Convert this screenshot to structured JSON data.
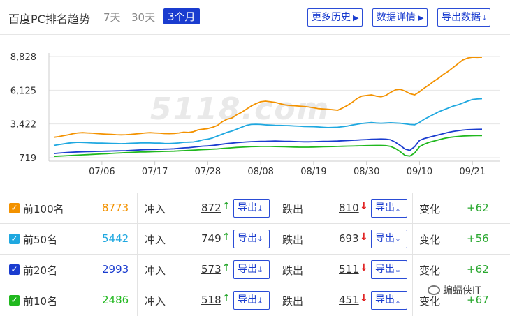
{
  "header": {
    "title": "百度PC排名趋势",
    "ranges": [
      "7天",
      "30天",
      "3个月"
    ],
    "active_range": "3个月",
    "buttons": {
      "history": "更多历史",
      "details": "数据详情",
      "export": "导出数据"
    },
    "icons": {
      "history": "chevron-right-icon",
      "details": "chevron-right-icon",
      "export": "download-icon"
    }
  },
  "watermark": "5118.com",
  "chart_data": {
    "type": "line",
    "x_ticks": [
      "07/06",
      "07/17",
      "07/28",
      "08/08",
      "08/19",
      "08/30",
      "09/10",
      "09/21"
    ],
    "y_ticks": [
      719,
      3422,
      6125,
      8828
    ],
    "ylim": [
      719,
      8828
    ],
    "x_count": 90,
    "grid": true,
    "series": [
      {
        "name": "前100名",
        "color": "#f39200",
        "values": [
          2350,
          2400,
          2480,
          2550,
          2640,
          2700,
          2720,
          2700,
          2680,
          2650,
          2620,
          2600,
          2580,
          2560,
          2550,
          2560,
          2580,
          2620,
          2660,
          2700,
          2720,
          2700,
          2680,
          2650,
          2640,
          2660,
          2700,
          2760,
          2740,
          2800,
          2950,
          3000,
          3050,
          3150,
          3300,
          3600,
          3800,
          3900,
          4150,
          4350,
          4600,
          4850,
          5050,
          5200,
          5250,
          5200,
          5150,
          5050,
          4950,
          4900,
          4880,
          4850,
          4820,
          4780,
          4720,
          4650,
          4620,
          4600,
          4560,
          4520,
          4700,
          4900,
          5150,
          5450,
          5650,
          5700,
          5750,
          5650,
          5600,
          5700,
          5950,
          6150,
          6200,
          6050,
          5850,
          5750,
          6000,
          6300,
          6550,
          6850,
          7100,
          7400,
          7650,
          7950,
          8250,
          8550,
          8700,
          8773,
          8760,
          8773
        ]
      },
      {
        "name": "前50名",
        "color": "#1fa8e0",
        "values": [
          1700,
          1760,
          1820,
          1880,
          1920,
          1950,
          1940,
          1920,
          1900,
          1890,
          1880,
          1870,
          1860,
          1850,
          1840,
          1850,
          1870,
          1880,
          1900,
          1910,
          1900,
          1890,
          1880,
          1860,
          1850,
          1870,
          1900,
          1950,
          1960,
          1980,
          2050,
          2150,
          2200,
          2300,
          2450,
          2600,
          2750,
          2850,
          3000,
          3150,
          3300,
          3380,
          3400,
          3380,
          3350,
          3330,
          3310,
          3300,
          3290,
          3280,
          3260,
          3240,
          3220,
          3210,
          3200,
          3180,
          3150,
          3130,
          3140,
          3160,
          3200,
          3250,
          3330,
          3400,
          3460,
          3500,
          3530,
          3500,
          3480,
          3500,
          3520,
          3500,
          3480,
          3430,
          3380,
          3360,
          3550,
          3800,
          4000,
          4200,
          4400,
          4550,
          4700,
          4850,
          4950,
          5100,
          5250,
          5380,
          5420,
          5442
        ]
      },
      {
        "name": "前20名",
        "color": "#1a3ccf",
        "values": [
          1050,
          1080,
          1110,
          1140,
          1160,
          1180,
          1190,
          1200,
          1210,
          1220,
          1230,
          1240,
          1250,
          1260,
          1270,
          1280,
          1300,
          1320,
          1340,
          1360,
          1370,
          1380,
          1390,
          1400,
          1410,
          1430,
          1460,
          1500,
          1520,
          1560,
          1600,
          1640,
          1660,
          1700,
          1740,
          1800,
          1850,
          1880,
          1920,
          1950,
          1980,
          2000,
          2010,
          2020,
          2030,
          2040,
          2050,
          2040,
          2030,
          2020,
          2010,
          2000,
          1990,
          1990,
          2000,
          2010,
          2020,
          2030,
          2040,
          2050,
          2070,
          2090,
          2110,
          2130,
          2150,
          2170,
          2190,
          2200,
          2210,
          2200,
          2150,
          1950,
          1700,
          1400,
          1300,
          1600,
          2100,
          2250,
          2350,
          2450,
          2550,
          2650,
          2750,
          2820,
          2880,
          2930,
          2960,
          2980,
          2990,
          2993
        ]
      },
      {
        "name": "前10名",
        "color": "#20b81e",
        "values": [
          820,
          840,
          860,
          880,
          900,
          920,
          940,
          960,
          980,
          1000,
          1020,
          1040,
          1060,
          1080,
          1100,
          1120,
          1140,
          1160,
          1170,
          1180,
          1190,
          1200,
          1210,
          1220,
          1230,
          1240,
          1260,
          1280,
          1300,
          1320,
          1340,
          1360,
          1380,
          1400,
          1420,
          1450,
          1480,
          1510,
          1540,
          1560,
          1580,
          1600,
          1610,
          1620,
          1620,
          1620,
          1610,
          1600,
          1590,
          1580,
          1570,
          1560,
          1560,
          1560,
          1570,
          1580,
          1590,
          1600,
          1610,
          1620,
          1630,
          1640,
          1650,
          1660,
          1670,
          1680,
          1690,
          1700,
          1700,
          1680,
          1620,
          1450,
          1200,
          900,
          850,
          1100,
          1600,
          1800,
          1950,
          2050,
          2150,
          2250,
          2330,
          2380,
          2420,
          2450,
          2470,
          2480,
          2484,
          2486
        ]
      }
    ]
  },
  "rows": [
    {
      "label": "前100名",
      "value": "8773",
      "color": "#f39200",
      "in_label": "冲入",
      "in_value": "872",
      "out_label": "跌出",
      "out_value": "810",
      "export_label": "导出",
      "change_label": "变化",
      "change_value": "+62"
    },
    {
      "label": "前50名",
      "value": "5442",
      "color": "#1fa8e0",
      "in_label": "冲入",
      "in_value": "749",
      "out_label": "跌出",
      "out_value": "693",
      "export_label": "导出",
      "change_label": "变化",
      "change_value": "+56"
    },
    {
      "label": "前20名",
      "value": "2993",
      "color": "#1a3ccf",
      "in_label": "冲入",
      "in_value": "573",
      "out_label": "跌出",
      "out_value": "511",
      "export_label": "导出",
      "change_label": "变化",
      "change_value": "+62"
    },
    {
      "label": "前10名",
      "value": "2486",
      "color": "#20b81e",
      "in_label": "冲入",
      "in_value": "518",
      "out_label": "跌出",
      "out_value": "451",
      "export_label": "导出",
      "change_label": "变化",
      "change_value": "+67"
    }
  ],
  "footer_watermark": "蝙蝠侠IT"
}
